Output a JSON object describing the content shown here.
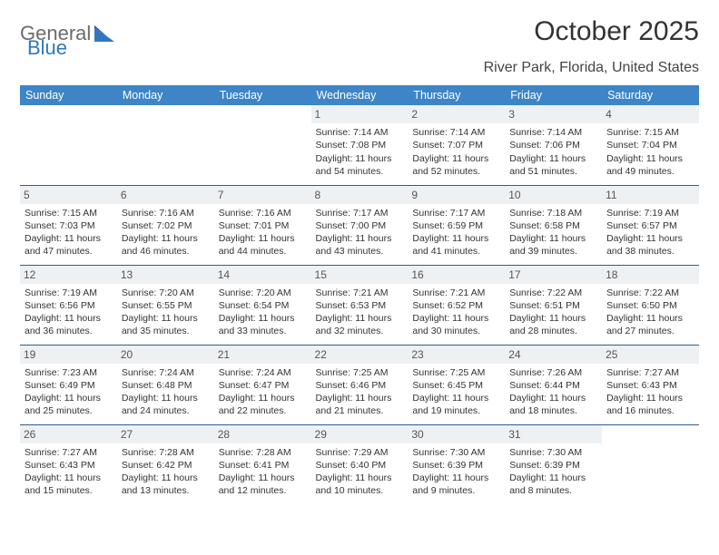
{
  "logo": {
    "part1": "General",
    "part2": "Blue"
  },
  "title": "October 2025",
  "location": "River Park, Florida, United States",
  "colors": {
    "header_bg": "#3d85c6",
    "header_text": "#ffffff",
    "row_border": "#2f5d8a",
    "daynum_bg": "#eef1f4",
    "logo_gray": "#6b6b6b",
    "logo_blue": "#2f78bf",
    "page_bg": "#ffffff"
  },
  "day_headers": [
    "Sunday",
    "Monday",
    "Tuesday",
    "Wednesday",
    "Thursday",
    "Friday",
    "Saturday"
  ],
  "weeks": [
    [
      {
        "empty": true
      },
      {
        "empty": true
      },
      {
        "empty": true
      },
      {
        "day": "1",
        "sunrise": "Sunrise: 7:14 AM",
        "sunset": "Sunset: 7:08 PM",
        "daylight": "Daylight: 11 hours and 54 minutes."
      },
      {
        "day": "2",
        "sunrise": "Sunrise: 7:14 AM",
        "sunset": "Sunset: 7:07 PM",
        "daylight": "Daylight: 11 hours and 52 minutes."
      },
      {
        "day": "3",
        "sunrise": "Sunrise: 7:14 AM",
        "sunset": "Sunset: 7:06 PM",
        "daylight": "Daylight: 11 hours and 51 minutes."
      },
      {
        "day": "4",
        "sunrise": "Sunrise: 7:15 AM",
        "sunset": "Sunset: 7:04 PM",
        "daylight": "Daylight: 11 hours and 49 minutes."
      }
    ],
    [
      {
        "day": "5",
        "sunrise": "Sunrise: 7:15 AM",
        "sunset": "Sunset: 7:03 PM",
        "daylight": "Daylight: 11 hours and 47 minutes."
      },
      {
        "day": "6",
        "sunrise": "Sunrise: 7:16 AM",
        "sunset": "Sunset: 7:02 PM",
        "daylight": "Daylight: 11 hours and 46 minutes."
      },
      {
        "day": "7",
        "sunrise": "Sunrise: 7:16 AM",
        "sunset": "Sunset: 7:01 PM",
        "daylight": "Daylight: 11 hours and 44 minutes."
      },
      {
        "day": "8",
        "sunrise": "Sunrise: 7:17 AM",
        "sunset": "Sunset: 7:00 PM",
        "daylight": "Daylight: 11 hours and 43 minutes."
      },
      {
        "day": "9",
        "sunrise": "Sunrise: 7:17 AM",
        "sunset": "Sunset: 6:59 PM",
        "daylight": "Daylight: 11 hours and 41 minutes."
      },
      {
        "day": "10",
        "sunrise": "Sunrise: 7:18 AM",
        "sunset": "Sunset: 6:58 PM",
        "daylight": "Daylight: 11 hours and 39 minutes."
      },
      {
        "day": "11",
        "sunrise": "Sunrise: 7:19 AM",
        "sunset": "Sunset: 6:57 PM",
        "daylight": "Daylight: 11 hours and 38 minutes."
      }
    ],
    [
      {
        "day": "12",
        "sunrise": "Sunrise: 7:19 AM",
        "sunset": "Sunset: 6:56 PM",
        "daylight": "Daylight: 11 hours and 36 minutes."
      },
      {
        "day": "13",
        "sunrise": "Sunrise: 7:20 AM",
        "sunset": "Sunset: 6:55 PM",
        "daylight": "Daylight: 11 hours and 35 minutes."
      },
      {
        "day": "14",
        "sunrise": "Sunrise: 7:20 AM",
        "sunset": "Sunset: 6:54 PM",
        "daylight": "Daylight: 11 hours and 33 minutes."
      },
      {
        "day": "15",
        "sunrise": "Sunrise: 7:21 AM",
        "sunset": "Sunset: 6:53 PM",
        "daylight": "Daylight: 11 hours and 32 minutes."
      },
      {
        "day": "16",
        "sunrise": "Sunrise: 7:21 AM",
        "sunset": "Sunset: 6:52 PM",
        "daylight": "Daylight: 11 hours and 30 minutes."
      },
      {
        "day": "17",
        "sunrise": "Sunrise: 7:22 AM",
        "sunset": "Sunset: 6:51 PM",
        "daylight": "Daylight: 11 hours and 28 minutes."
      },
      {
        "day": "18",
        "sunrise": "Sunrise: 7:22 AM",
        "sunset": "Sunset: 6:50 PM",
        "daylight": "Daylight: 11 hours and 27 minutes."
      }
    ],
    [
      {
        "day": "19",
        "sunrise": "Sunrise: 7:23 AM",
        "sunset": "Sunset: 6:49 PM",
        "daylight": "Daylight: 11 hours and 25 minutes."
      },
      {
        "day": "20",
        "sunrise": "Sunrise: 7:24 AM",
        "sunset": "Sunset: 6:48 PM",
        "daylight": "Daylight: 11 hours and 24 minutes."
      },
      {
        "day": "21",
        "sunrise": "Sunrise: 7:24 AM",
        "sunset": "Sunset: 6:47 PM",
        "daylight": "Daylight: 11 hours and 22 minutes."
      },
      {
        "day": "22",
        "sunrise": "Sunrise: 7:25 AM",
        "sunset": "Sunset: 6:46 PM",
        "daylight": "Daylight: 11 hours and 21 minutes."
      },
      {
        "day": "23",
        "sunrise": "Sunrise: 7:25 AM",
        "sunset": "Sunset: 6:45 PM",
        "daylight": "Daylight: 11 hours and 19 minutes."
      },
      {
        "day": "24",
        "sunrise": "Sunrise: 7:26 AM",
        "sunset": "Sunset: 6:44 PM",
        "daylight": "Daylight: 11 hours and 18 minutes."
      },
      {
        "day": "25",
        "sunrise": "Sunrise: 7:27 AM",
        "sunset": "Sunset: 6:43 PM",
        "daylight": "Daylight: 11 hours and 16 minutes."
      }
    ],
    [
      {
        "day": "26",
        "sunrise": "Sunrise: 7:27 AM",
        "sunset": "Sunset: 6:43 PM",
        "daylight": "Daylight: 11 hours and 15 minutes."
      },
      {
        "day": "27",
        "sunrise": "Sunrise: 7:28 AM",
        "sunset": "Sunset: 6:42 PM",
        "daylight": "Daylight: 11 hours and 13 minutes."
      },
      {
        "day": "28",
        "sunrise": "Sunrise: 7:28 AM",
        "sunset": "Sunset: 6:41 PM",
        "daylight": "Daylight: 11 hours and 12 minutes."
      },
      {
        "day": "29",
        "sunrise": "Sunrise: 7:29 AM",
        "sunset": "Sunset: 6:40 PM",
        "daylight": "Daylight: 11 hours and 10 minutes."
      },
      {
        "day": "30",
        "sunrise": "Sunrise: 7:30 AM",
        "sunset": "Sunset: 6:39 PM",
        "daylight": "Daylight: 11 hours and 9 minutes."
      },
      {
        "day": "31",
        "sunrise": "Sunrise: 7:30 AM",
        "sunset": "Sunset: 6:39 PM",
        "daylight": "Daylight: 11 hours and 8 minutes."
      },
      {
        "empty": true
      }
    ]
  ]
}
